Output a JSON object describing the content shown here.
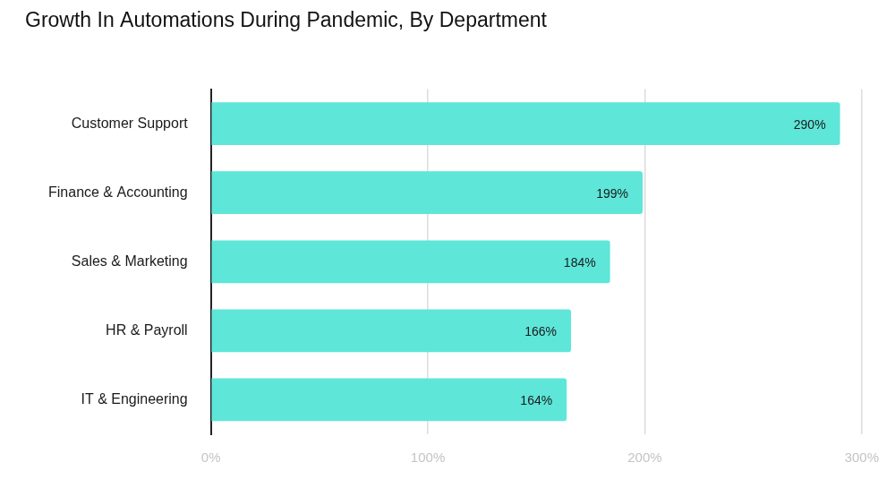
{
  "chart_data": {
    "type": "bar",
    "title": "Growth In Automations During Pandemic, By Department",
    "orientation": "horizontal",
    "categories": [
      "Customer Support",
      "Finance & Accounting",
      "Sales & Marketing",
      "HR & Payroll",
      "IT & Engineering"
    ],
    "values": [
      290,
      199,
      184,
      166,
      164
    ],
    "value_labels": [
      "290%",
      "199%",
      "184%",
      "166%",
      "164%"
    ],
    "color": "#5ee6d9",
    "xlim": [
      0,
      300
    ],
    "xticks": [
      {
        "value": 0,
        "label": "0%"
      },
      {
        "value": 100,
        "label": "100%"
      },
      {
        "value": 200,
        "label": "200%"
      },
      {
        "value": 300,
        "label": "300%"
      }
    ],
    "grid": true,
    "data_labels": true
  }
}
